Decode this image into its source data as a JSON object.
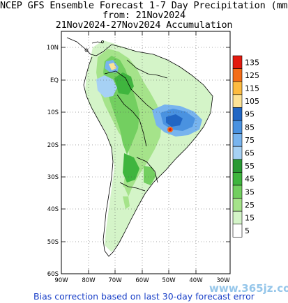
{
  "title_line1": "NCEP GFS Ensemble Forecast 1-7 Day Precipitation (mm)",
  "title_line2": "from: 21Nov2024",
  "title_line3": "21Nov2024-27Nov2024 Accumulation",
  "lat_ticks": [
    "10N",
    "EQ",
    "10S",
    "20S",
    "30S",
    "40S",
    "50S",
    "60S"
  ],
  "lon_ticks": [
    "90W",
    "80W",
    "70W",
    "60W",
    "50W",
    "40W",
    "30W"
  ],
  "legend": {
    "values": [
      "135",
      "125",
      "115",
      "105",
      "95",
      "85",
      "75",
      "65",
      "55",
      "45",
      "35",
      "25",
      "15",
      "5"
    ],
    "colors": [
      "#e31a0e",
      "#f46d18",
      "#fdbb40",
      "#fde396",
      "#2166c4",
      "#4a92e0",
      "#78b4ee",
      "#a6d1f4",
      "#2a9a34",
      "#3fb53e",
      "#73cf60",
      "#a5e38a",
      "#d4f4c8",
      "#ffffff"
    ]
  },
  "footer": "Bias correction based on last 30-day forecast error",
  "watermark": "www.365jz.com"
}
